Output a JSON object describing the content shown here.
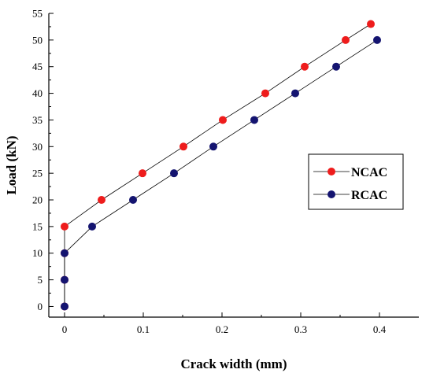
{
  "chart_data": {
    "type": "line",
    "xlabel": "Crack width (mm)",
    "ylabel": "Load (kN)",
    "xlim": [
      -0.02,
      0.45
    ],
    "ylim": [
      -2,
      55
    ],
    "x_ticks": [
      0,
      0.1,
      0.2,
      0.3,
      0.4
    ],
    "x_tick_labels": [
      "0",
      "0.1",
      "0.2",
      "0.3",
      "0.4"
    ],
    "y_ticks": [
      0,
      5,
      10,
      15,
      20,
      25,
      30,
      35,
      40,
      45,
      50,
      55
    ],
    "y_tick_labels": [
      "0",
      "5",
      "10",
      "15",
      "20",
      "25",
      "30",
      "35",
      "40",
      "45",
      "50",
      "55"
    ],
    "grid": false,
    "legend_position": "right",
    "series": [
      {
        "name": "NCAC",
        "color": "#ee1c1c",
        "x": [
          0,
          0,
          0,
          0,
          0.047,
          0.099,
          0.151,
          0.201,
          0.255,
          0.305,
          0.357,
          0.389
        ],
        "y": [
          0,
          5,
          10,
          15,
          20,
          25,
          30,
          35,
          40,
          45,
          50,
          53
        ]
      },
      {
        "name": "RCAC",
        "color": "#141470",
        "x": [
          0,
          0,
          0,
          0.035,
          0.087,
          0.139,
          0.189,
          0.241,
          0.293,
          0.345,
          0.397
        ],
        "y": [
          0,
          5,
          10,
          15,
          20,
          25,
          30,
          35,
          40,
          45,
          50
        ]
      }
    ]
  }
}
